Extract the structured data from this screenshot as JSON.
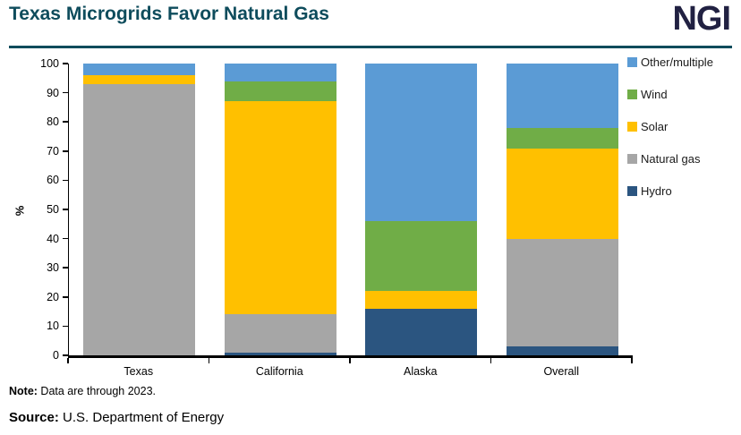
{
  "header": {
    "title": "Texas Microgrids Favor Natural Gas",
    "logo": "NGI"
  },
  "footer": {
    "note_label": "Note:",
    "note_text": " Data are through 2023.",
    "source_label": "Source:",
    "source_text": " U.S. Department of Energy"
  },
  "colors": {
    "title_teal": "#0E4C5C",
    "logo_navy": "#212142",
    "axis_black": "#000000"
  },
  "chart_data": {
    "type": "bar",
    "stacked": true,
    "title": "Texas Microgrids Favor Natural Gas",
    "categories": [
      "Texas",
      "California",
      "Alaska",
      "Overall"
    ],
    "series": [
      {
        "name": "Hydro",
        "color": "#2B5580",
        "values": [
          0,
          1,
          16,
          3
        ]
      },
      {
        "name": "Natural gas",
        "color": "#A6A6A6",
        "values": [
          93,
          13,
          0,
          37
        ]
      },
      {
        "name": "Solar",
        "color": "#FFC000",
        "values": [
          3,
          73,
          6,
          31
        ]
      },
      {
        "name": "Wind",
        "color": "#70AD47",
        "values": [
          0,
          7,
          24,
          7
        ]
      },
      {
        "name": "Other/multiple",
        "color": "#5B9BD5",
        "values": [
          4,
          6,
          54,
          22
        ]
      }
    ],
    "legend_order": [
      "Other/multiple",
      "Wind",
      "Solar",
      "Natural gas",
      "Hydro"
    ],
    "legend_position": "right",
    "xlabel": "",
    "ylabel": "%",
    "ylim": [
      0,
      100
    ],
    "ytick_step": 10,
    "grid": false
  }
}
